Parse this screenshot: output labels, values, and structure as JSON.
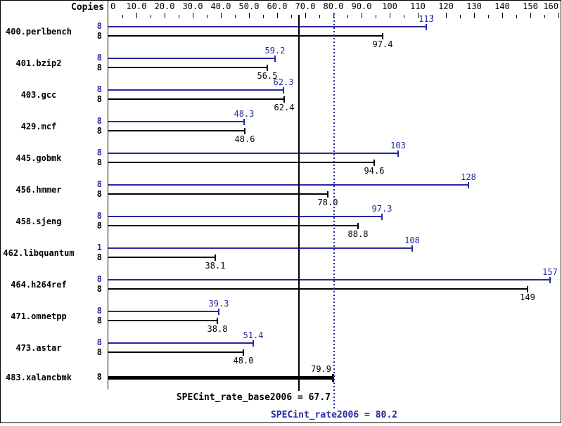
{
  "chart_data": {
    "type": "bar",
    "orientation": "horizontal",
    "title": "",
    "copies_column_header": "Copies",
    "legend": "none",
    "grid": false,
    "x_axis": {
      "min": 0,
      "max": 160,
      "major_tick": 10,
      "minor_tick": 5,
      "tick_labels": [
        "0",
        "10.0",
        "20.0",
        "30.0",
        "40.0",
        "50.0",
        "60.0",
        "70.0",
        "80.0",
        "90.0",
        "100",
        "110",
        "120",
        "130",
        "140",
        "150",
        "160"
      ]
    },
    "series_colors": {
      "peak": "#2828a0",
      "base": "#000000"
    },
    "rows": [
      {
        "benchmark": "400.perlbench",
        "peak": {
          "copies": "8",
          "value": 113,
          "label": "113"
        },
        "base": {
          "copies": "8",
          "value": 97.4,
          "label": "97.4"
        }
      },
      {
        "benchmark": "401.bzip2",
        "peak": {
          "copies": "8",
          "value": 59.2,
          "label": "59.2"
        },
        "base": {
          "copies": "8",
          "value": 56.5,
          "label": "56.5"
        }
      },
      {
        "benchmark": "403.gcc",
        "peak": {
          "copies": "8",
          "value": 62.3,
          "label": "62.3"
        },
        "base": {
          "copies": "8",
          "value": 62.4,
          "label": "62.4"
        }
      },
      {
        "benchmark": "429.mcf",
        "peak": {
          "copies": "8",
          "value": 48.3,
          "label": "48.3"
        },
        "base": {
          "copies": "8",
          "value": 48.6,
          "label": "48.6"
        }
      },
      {
        "benchmark": "445.gobmk",
        "peak": {
          "copies": "8",
          "value": 103,
          "label": "103"
        },
        "base": {
          "copies": "8",
          "value": 94.6,
          "label": "94.6"
        }
      },
      {
        "benchmark": "456.hmmer",
        "peak": {
          "copies": "8",
          "value": 128,
          "label": "128"
        },
        "base": {
          "copies": "8",
          "value": 78.0,
          "label": "78.0"
        }
      },
      {
        "benchmark": "458.sjeng",
        "peak": {
          "copies": "8",
          "value": 97.3,
          "label": "97.3"
        },
        "base": {
          "copies": "8",
          "value": 88.8,
          "label": "88.8"
        }
      },
      {
        "benchmark": "462.libquantum",
        "peak": {
          "copies": "1",
          "value": 108,
          "label": "108"
        },
        "base": {
          "copies": "8",
          "value": 38.1,
          "label": "38.1"
        }
      },
      {
        "benchmark": "464.h264ref",
        "peak": {
          "copies": "8",
          "value": 157,
          "label": "157"
        },
        "base": {
          "copies": "8",
          "value": 149,
          "label": "149"
        }
      },
      {
        "benchmark": "471.omnetpp",
        "peak": {
          "copies": "8",
          "value": 39.3,
          "label": "39.3"
        },
        "base": {
          "copies": "8",
          "value": 38.8,
          "label": "38.8"
        }
      },
      {
        "benchmark": "473.astar",
        "peak": {
          "copies": "8",
          "value": 51.4,
          "label": "51.4"
        },
        "base": {
          "copies": "8",
          "value": 48.0,
          "label": "48.0"
        }
      },
      {
        "benchmark": "483.xalancbmk",
        "single": {
          "copies": "8",
          "value": 79.9,
          "label": "79.9"
        }
      }
    ],
    "reference_lines": [
      {
        "name": "SPECint_rate_base2006",
        "value": 67.7,
        "label": "SPECint_rate_base2006 = 67.7",
        "style": "solid",
        "color": "#000000"
      },
      {
        "name": "SPECint_rate2006",
        "value": 80.2,
        "label": "SPECint_rate2006 = 80.2",
        "style": "dotted",
        "color": "#2828a0"
      }
    ]
  }
}
